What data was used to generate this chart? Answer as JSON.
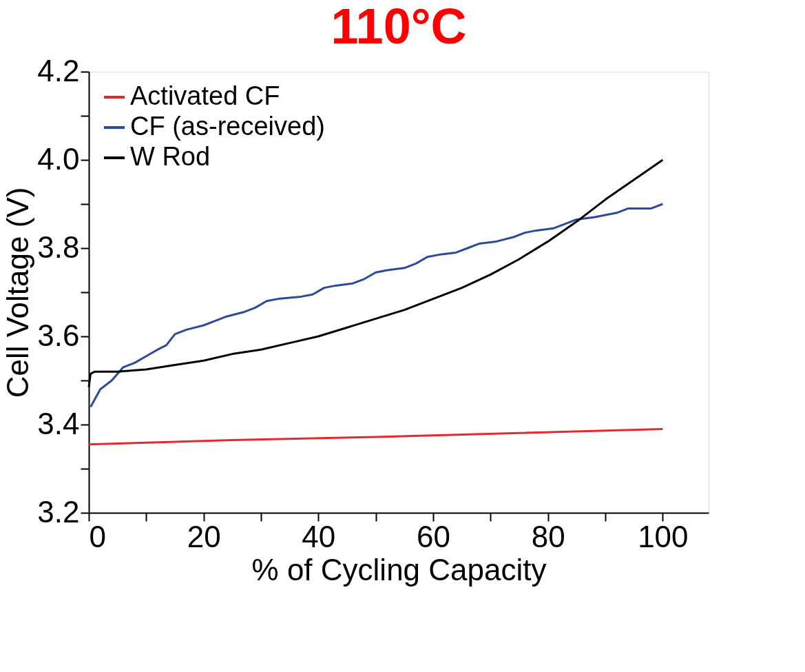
{
  "chart_data": {
    "type": "line",
    "title": "110°C",
    "xlabel": "% of Cycling Capacity",
    "ylabel": "Cell Voltage (V)",
    "xlim": [
      0,
      108
    ],
    "ylim": [
      3.2,
      4.2
    ],
    "xticks": [
      0,
      {
        "value": 10,
        "label": null
      },
      20,
      {
        "value": 30,
        "label": null
      },
      40,
      {
        "value": 50,
        "label": null
      },
      60,
      {
        "value": 70,
        "label": null
      },
      80,
      {
        "value": 90,
        "label": null
      },
      100
    ],
    "yticks": [
      3.2,
      {
        "value": 3.3,
        "label": null
      },
      3.4,
      {
        "value": 3.5,
        "label": null
      },
      3.6,
      {
        "value": 3.7,
        "label": null
      },
      3.8,
      {
        "value": 3.9,
        "label": null
      },
      {
        "value": 4.0,
        "label": "4.0"
      },
      {
        "value": 4.1,
        "label": null
      },
      4.2
    ],
    "grid": false,
    "legend": "top left",
    "line_style": "solid",
    "marker": "none",
    "series": [
      {
        "name": "Activated CF",
        "color": "#e8262e",
        "x": [
          0,
          10,
          25,
          50,
          75,
          100
        ],
        "values": [
          3.355,
          3.359,
          3.365,
          3.372,
          3.381,
          3.39
        ]
      },
      {
        "name": "CF (as-received)",
        "color": "#2a4a9c",
        "x": [
          0.3,
          2,
          4,
          6,
          8,
          10,
          12,
          13.5,
          15,
          17,
          20,
          22,
          24,
          27,
          29,
          31,
          33,
          37,
          39,
          41,
          43,
          46,
          48,
          50,
          52,
          55,
          57,
          59,
          61,
          64,
          66,
          68,
          71,
          74,
          76,
          78,
          81,
          83,
          85,
          88,
          90,
          92,
          94,
          98,
          100
        ],
        "values": [
          3.44,
          3.48,
          3.5,
          3.53,
          3.54,
          3.555,
          3.57,
          3.58,
          3.605,
          3.615,
          3.625,
          3.635,
          3.645,
          3.655,
          3.665,
          3.68,
          3.685,
          3.69,
          3.695,
          3.71,
          3.715,
          3.72,
          3.73,
          3.745,
          3.75,
          3.755,
          3.765,
          3.78,
          3.785,
          3.79,
          3.8,
          3.81,
          3.815,
          3.825,
          3.835,
          3.84,
          3.845,
          3.855,
          3.865,
          3.87,
          3.875,
          3.88,
          3.89,
          3.89,
          3.9
        ]
      },
      {
        "name": "W Rod",
        "color": "#000000",
        "x": [
          0,
          0.3,
          1,
          5,
          10,
          15,
          20,
          25,
          30,
          35,
          40,
          45,
          50,
          55,
          60,
          65,
          70,
          75,
          80,
          85,
          90,
          95,
          100
        ],
        "values": [
          3.485,
          3.515,
          3.52,
          3.52,
          3.525,
          3.535,
          3.545,
          3.56,
          3.57,
          3.585,
          3.6,
          3.62,
          3.64,
          3.66,
          3.685,
          3.71,
          3.74,
          3.775,
          3.815,
          3.86,
          3.91,
          3.955,
          4.0
        ]
      }
    ]
  }
}
